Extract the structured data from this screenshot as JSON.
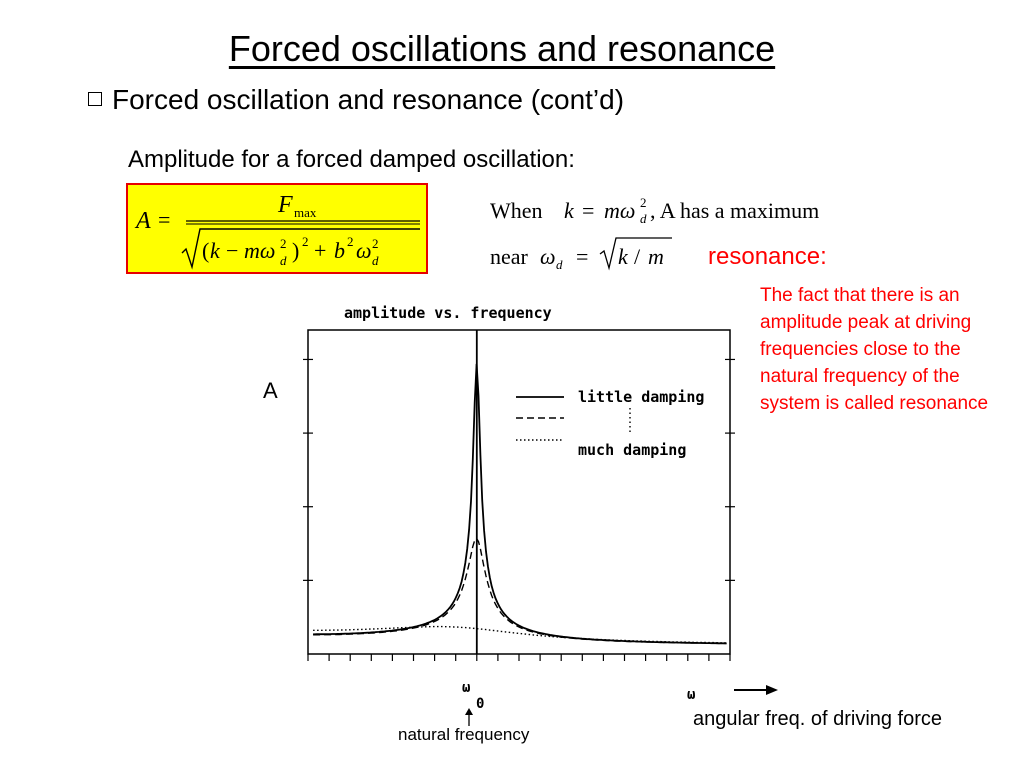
{
  "slide": {
    "title": "Forced oscillations and resonance",
    "bullet": "Forced oscillation and resonance (cont’d)",
    "amplitude_label": "Amplitude for a forced damped oscillation:",
    "formula": {
      "lhs": "A",
      "eq": "=",
      "numerator": "F",
      "numerator_sub": "max",
      "denominator": "(k − mω_d²)² + b²ω_d²"
    },
    "condition_line1": {
      "prefix": "When",
      "expr": "k = mω_d²",
      "suffix": ", A has a maximum"
    },
    "condition_line2": {
      "prefix": "near",
      "expr": "ω_d = √(k / m)"
    },
    "resonance_title": "resonance:",
    "resonance_text": "The fact that there is an amplitude  peak at driving frequencies close to the natural frequency of the system is called resonance",
    "y_axis_label": "A",
    "natural_frequency_label": "natural frequency",
    "driving_force_label": "angular freq. of driving force",
    "colors": {
      "accent_red": "#ff0000",
      "formula_bg": "#ffff00",
      "formula_border": "#e60000"
    }
  },
  "chart_data": {
    "type": "line",
    "title": "amplitude vs. frequency",
    "xlabel": "ω",
    "ylabel": "A",
    "x_marker_label": "ω₀",
    "legend": [
      "little damping",
      "much damping"
    ],
    "legend_placement": "top-right",
    "series": [
      {
        "name": "little damping",
        "style": "solid",
        "peak_x": 1.0,
        "peak_y": 1.0
      },
      {
        "name": "",
        "style": "dashed",
        "peak_x": 1.0,
        "peak_y": 0.38
      },
      {
        "name": "much damping",
        "style": "dotted",
        "peak_x": 1.0,
        "peak_y": 0.06
      }
    ],
    "xlim": [
      0,
      2.5
    ],
    "ylim": [
      0,
      1.15
    ],
    "grid": false
  }
}
